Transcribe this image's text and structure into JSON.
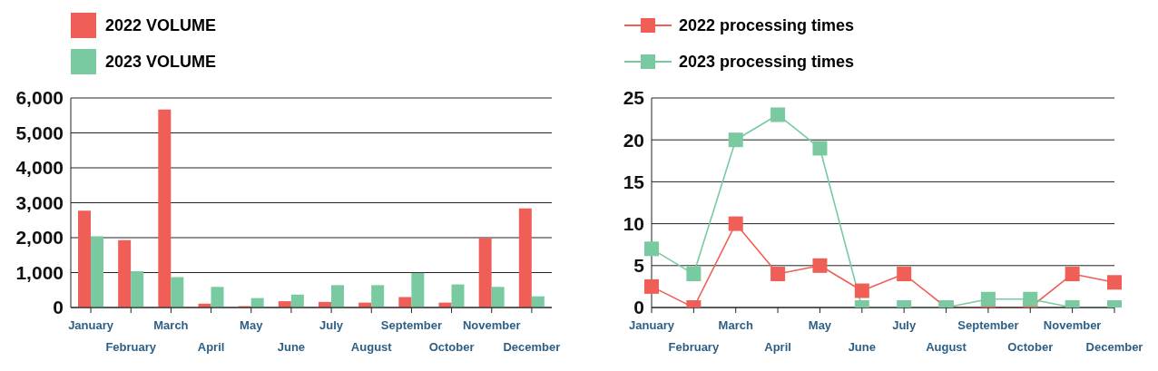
{
  "chart_data": [
    {
      "type": "bar",
      "categories": [
        "January",
        "February",
        "March",
        "April",
        "May",
        "June",
        "July",
        "August",
        "September",
        "October",
        "November",
        "December"
      ],
      "series": [
        {
          "name": "2022 VOLUME",
          "color": "#f05f57",
          "values": [
            2770,
            1930,
            5670,
            110,
            40,
            180,
            160,
            140,
            300,
            140,
            1990,
            2840
          ]
        },
        {
          "name": "2023 VOLUME",
          "color": "#79c9a1",
          "values": [
            2040,
            1040,
            870,
            590,
            270,
            370,
            640,
            640,
            990,
            660,
            590,
            320
          ]
        }
      ],
      "ylim": [
        0,
        6000
      ],
      "yticks": [
        {
          "value": 0,
          "label": "0"
        },
        {
          "value": 1000,
          "label": "1,000"
        },
        {
          "value": 2000,
          "label": "2,000"
        },
        {
          "value": 3000,
          "label": "3,000"
        },
        {
          "value": 4000,
          "label": "4,000"
        },
        {
          "value": 5000,
          "label": "5,000"
        },
        {
          "value": 6000,
          "label": "6,000"
        }
      ],
      "grid": "y",
      "legend": "top left"
    },
    {
      "type": "line",
      "categories": [
        "January",
        "February",
        "March",
        "April",
        "May",
        "June",
        "July",
        "August",
        "September",
        "October",
        "November",
        "December"
      ],
      "series": [
        {
          "name": "2022 processing times",
          "color": "#f05f57",
          "values": [
            2.5,
            0,
            10,
            4,
            5,
            2,
            4,
            0,
            0,
            0,
            4,
            3
          ]
        },
        {
          "name": "2023 processing times",
          "color": "#79c9a1",
          "values": [
            7,
            4,
            20,
            23,
            19,
            0,
            0,
            0,
            1,
            1,
            0,
            0
          ]
        }
      ],
      "ylim": [
        0,
        25
      ],
      "yticks": [
        0,
        5,
        10,
        15,
        20,
        25
      ],
      "grid": "y",
      "legend": "top left",
      "marker": "square",
      "line_style": "solid"
    }
  ]
}
